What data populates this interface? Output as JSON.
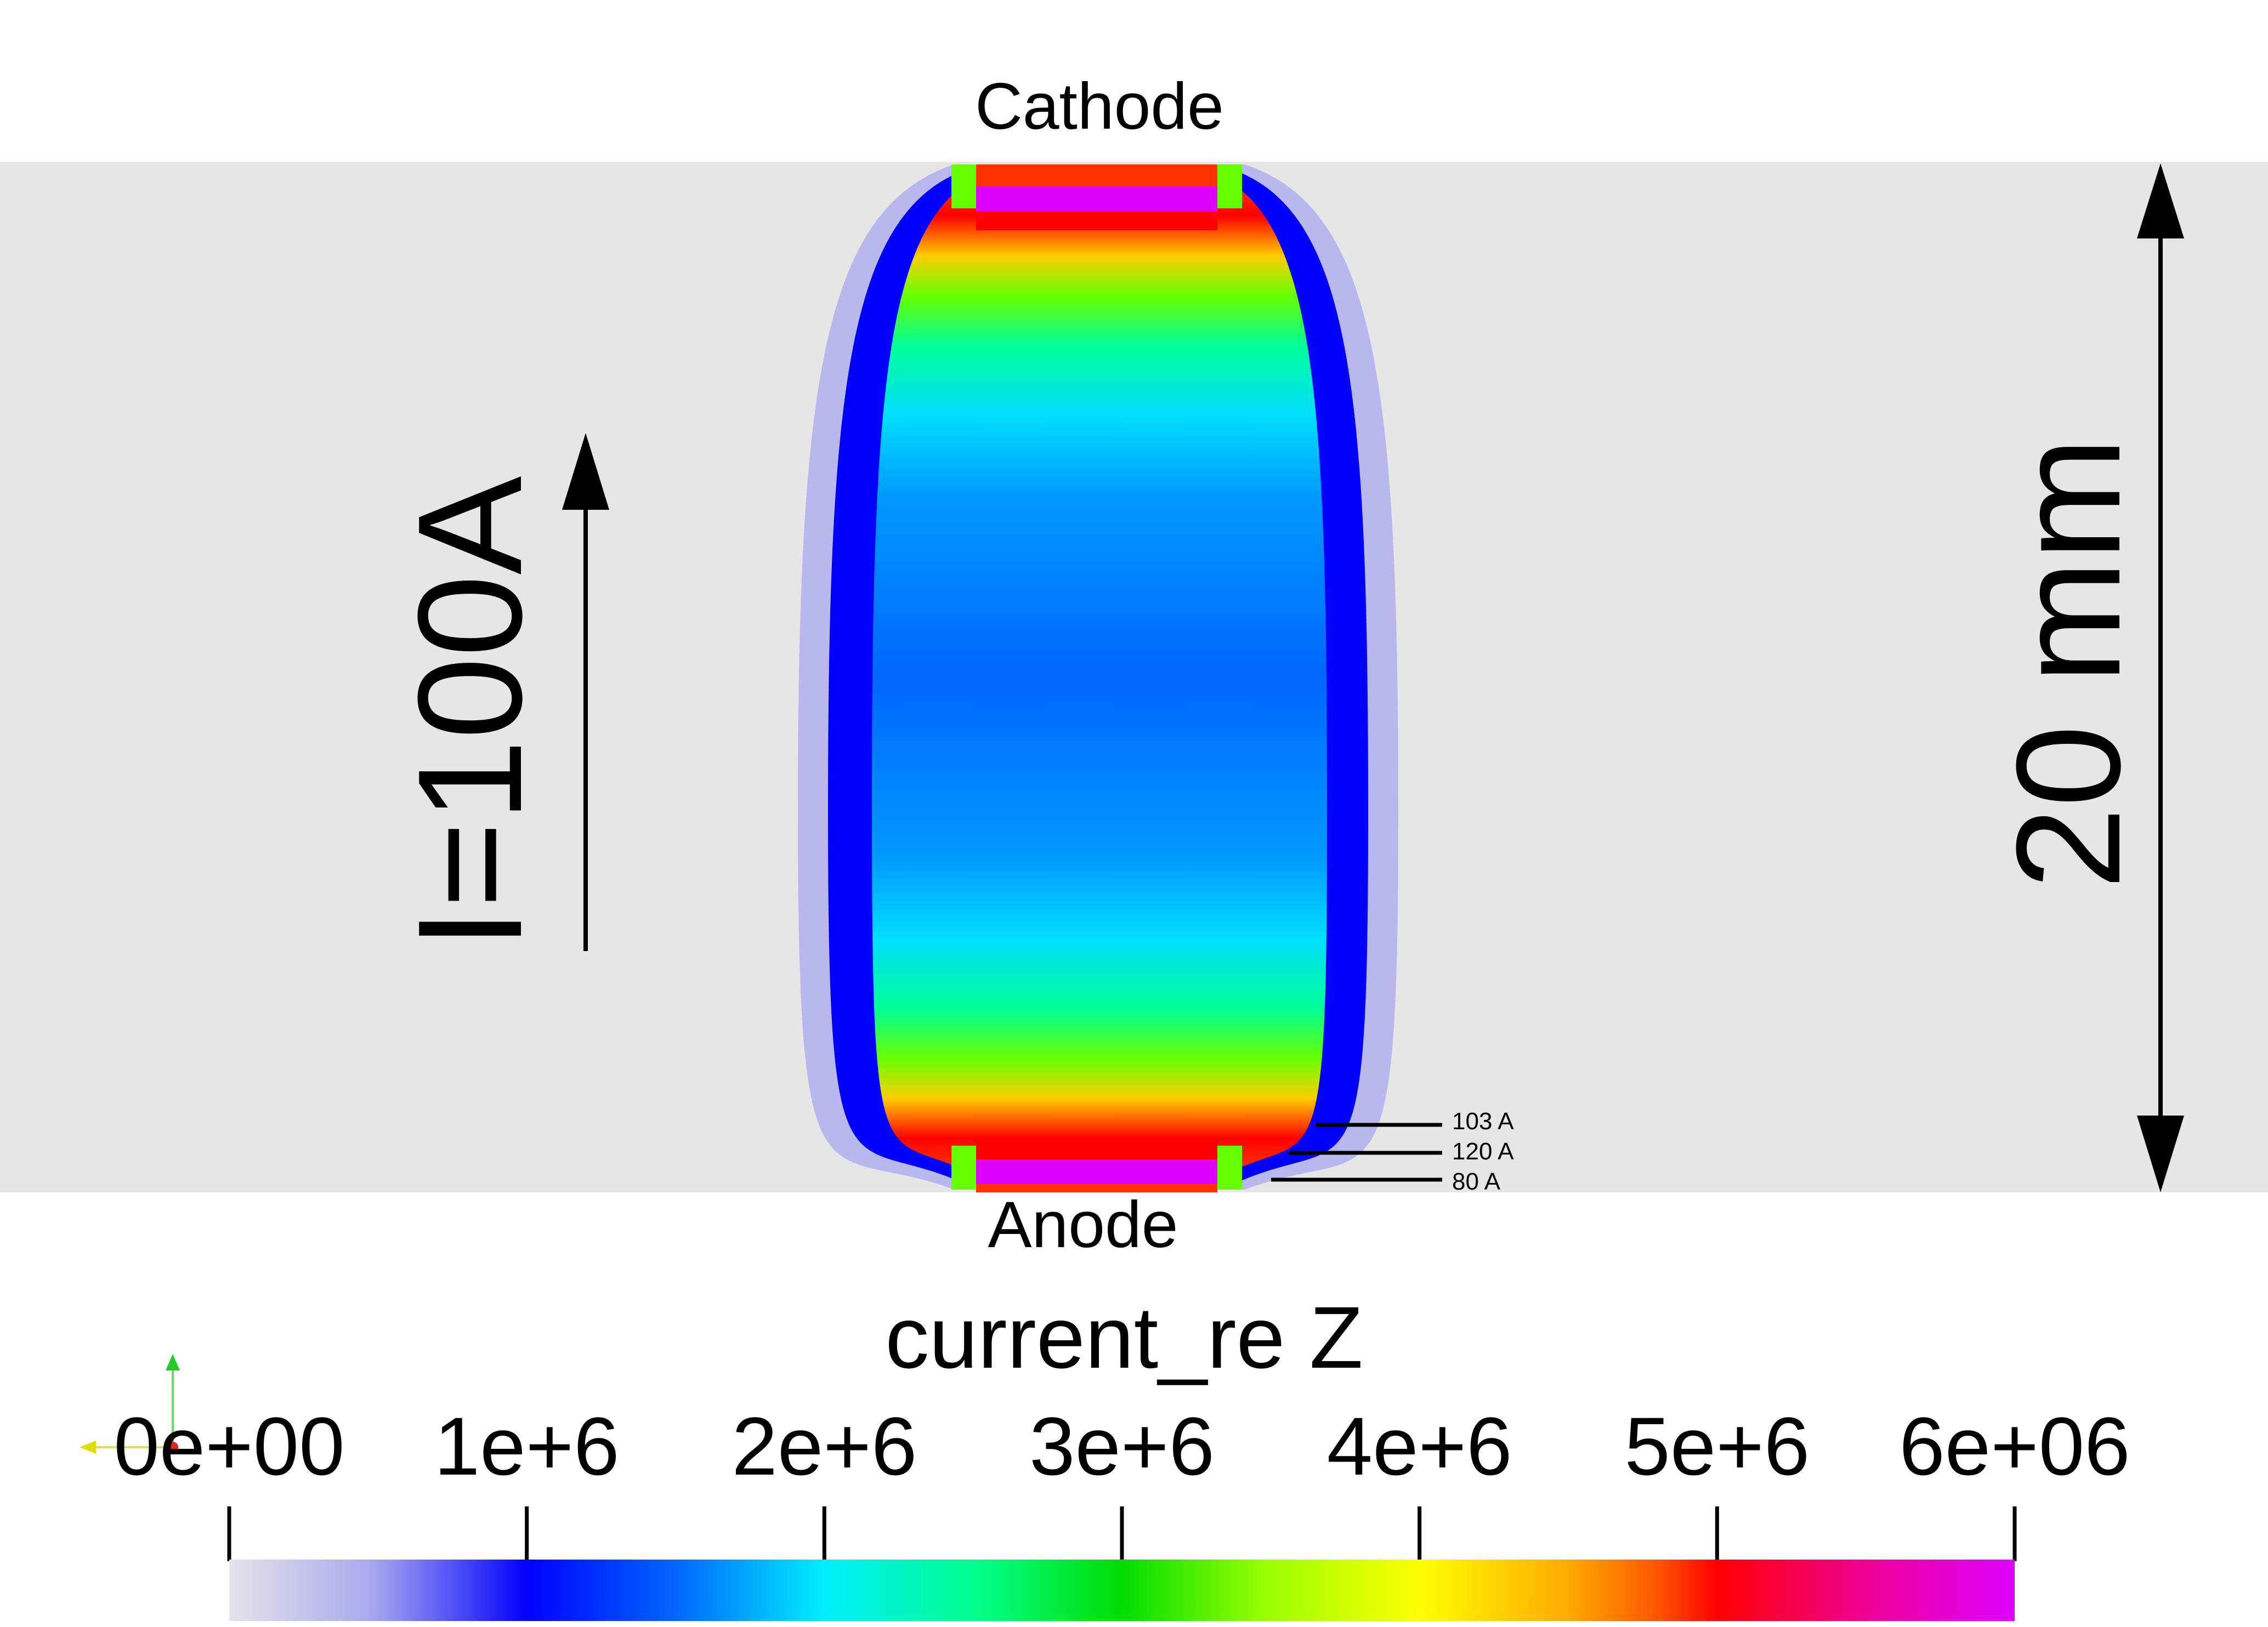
{
  "labels": {
    "cathode": "Cathode",
    "anode": "Anode",
    "current": "I=100A",
    "length": "20 mm"
  },
  "contours": [
    {
      "label": "103 A"
    },
    {
      "label": "120 A"
    },
    {
      "label": "80 A"
    }
  ],
  "colorbar": {
    "title": "current_re Z",
    "ticks": [
      "0e+00",
      "1e+6",
      "2e+6",
      "3e+6",
      "4e+6",
      "5e+6",
      "6e+06"
    ],
    "range": [
      0,
      6000000
    ],
    "colormap": [
      "#e3e3e8",
      "#a8a8f0",
      "#0000ff",
      "#0066ff",
      "#00eeff",
      "#00ff88",
      "#00dd00",
      "#99ff00",
      "#ffff00",
      "#ffaa00",
      "#ff5500",
      "#ff0000",
      "#ee0099",
      "#dd00ff"
    ]
  },
  "colors": {
    "background_band": "#e6e6e6",
    "page": "#ffffff"
  }
}
